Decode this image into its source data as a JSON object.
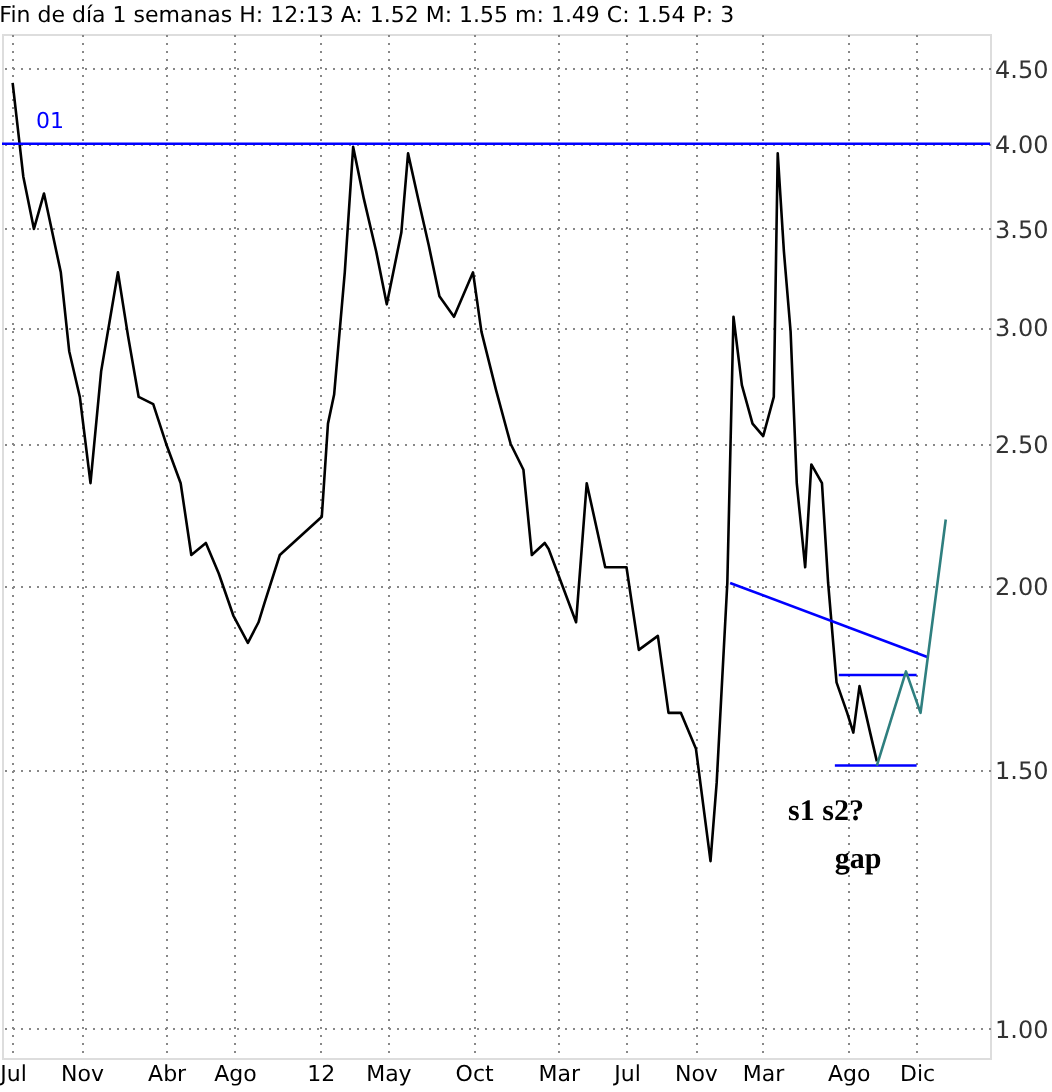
{
  "chart_data": {
    "type": "line",
    "title": "Fin de día 1 semanas H: 12:13 A: 1.52 M: 1.55 m: 1.49 C: 1.54 P: 3",
    "xlim": [
      "2010-06-12",
      "2015-04-11"
    ],
    "xticks": [
      {
        "value": "2010-07-01",
        "label": "Jul"
      },
      {
        "value": "2010-11-01",
        "label": "Nov"
      },
      {
        "value": "2011-04-01",
        "label": "Abr"
      },
      {
        "value": "2011-08-01",
        "label": "Ago"
      },
      {
        "value": "2012-01-01",
        "label": "12"
      },
      {
        "value": "2012-05-01",
        "label": "May"
      },
      {
        "value": "2012-10-01",
        "label": "Oct"
      },
      {
        "value": "2013-03-01",
        "label": "Mar"
      },
      {
        "value": "2013-07-01",
        "label": "Jul"
      },
      {
        "value": "2013-11-01",
        "label": "Nov"
      },
      {
        "value": "2014-03-01",
        "label": "Mar"
      },
      {
        "value": "2014-08-01",
        "label": "Ago"
      },
      {
        "value": "2014-12-01",
        "label": "Dic"
      }
    ],
    "ylim": [
      0.955,
      4.75
    ],
    "log": true,
    "yticks": [
      {
        "value": 1,
        "label": "1.00"
      },
      {
        "value": 1.5,
        "label": "1.50"
      },
      {
        "value": 2,
        "label": "2.00"
      },
      {
        "value": 2.5,
        "label": "2.50"
      },
      {
        "value": 3,
        "label": "3.00"
      },
      {
        "value": 3.5,
        "label": "3.50"
      },
      {
        "value": 4,
        "label": "4.00"
      },
      {
        "value": 4.5,
        "label": "4.50"
      }
    ],
    "grid": true,
    "series": [
      {
        "color": "#000000",
        "x": [
          "2010-07-01",
          "2010-07-20",
          "2010-08-08",
          "2010-08-26",
          "2010-09-25",
          "2010-10-10",
          "2010-10-29",
          "2010-11-17",
          "2010-12-06",
          "2011-01-05",
          "2011-01-23",
          "2011-02-11",
          "2011-03-09",
          "2011-04-01",
          "2011-04-27",
          "2011-05-16",
          "2011-06-11",
          "2011-07-04",
          "2011-07-30",
          "2011-08-25",
          "2011-09-13",
          "2011-09-24",
          "2011-10-21",
          "2012-01-04",
          "2012-01-15",
          "2012-01-26",
          "2012-02-14",
          "2012-02-29",
          "2012-03-19",
          "2012-04-10",
          "2012-04-29",
          "2012-05-25",
          "2012-06-06",
          "2012-06-24",
          "2012-07-13",
          "2012-08-01",
          "2012-08-27",
          "2012-09-30",
          "2012-10-15",
          "2012-11-10",
          "2012-12-06",
          "2012-12-29",
          "2013-01-13",
          "2013-02-05",
          "2013-02-12",
          "2013-04-02",
          "2013-04-21",
          "2013-05-24",
          "2013-07-01",
          "2013-07-23",
          "2013-08-26",
          "2013-09-14",
          "2013-10-06",
          "2013-11-02",
          "2013-11-28",
          "2013-12-09",
          "2013-12-28",
          "2014-01-08",
          "2014-01-23",
          "2014-02-11",
          "2014-03-02",
          "2014-03-21",
          "2014-03-28",
          "2014-04-08",
          "2014-04-20",
          "2014-05-01",
          "2014-05-16",
          "2014-05-27",
          "2014-06-15",
          "2014-06-26",
          "2014-07-11",
          "2014-07-30",
          "2014-08-10",
          "2014-08-21",
          "2014-09-09",
          "2014-09-21"
        ],
        "values": [
          4.4,
          3.8,
          3.5,
          3.7,
          3.27,
          2.89,
          2.69,
          2.35,
          2.8,
          3.27,
          2.96,
          2.69,
          2.66,
          2.5,
          2.35,
          2.1,
          2.14,
          2.04,
          1.91,
          1.83,
          1.89,
          1.95,
          2.1,
          2.23,
          2.58,
          2.7,
          3.27,
          3.98,
          3.67,
          3.38,
          3.11,
          3.48,
          3.94,
          3.67,
          3.41,
          3.15,
          3.05,
          3.27,
          2.98,
          2.72,
          2.5,
          2.4,
          2.1,
          2.14,
          2.12,
          1.89,
          2.35,
          2.06,
          2.06,
          1.81,
          1.85,
          1.64,
          1.64,
          1.55,
          1.3,
          1.47,
          2.01,
          3.05,
          2.74,
          2.58,
          2.53,
          2.69,
          3.94,
          3.38,
          2.98,
          2.35,
          2.06,
          2.42,
          2.35,
          2.01,
          1.72,
          1.64,
          1.59,
          1.71,
          1.59,
          1.52
        ]
      },
      {
        "color": "#0000ff",
        "x": [
          "2014-01-02",
          "2014-12-20"
        ],
        "values": [
          2.01,
          1.79
        ]
      },
      {
        "color": "#0000ff",
        "x": [
          "2014-07-15",
          "2014-12-01"
        ],
        "values": [
          1.74,
          1.74
        ]
      },
      {
        "color": "#0000ff",
        "x": [
          "2014-07-08",
          "2014-12-01"
        ],
        "values": [
          1.51,
          1.51
        ]
      },
      {
        "color": "#2f7f7f",
        "x": [
          "2014-09-21",
          "2014-11-12",
          "2014-12-08",
          "2015-01-22"
        ],
        "values": [
          1.51,
          1.75,
          1.64,
          2.22
        ]
      }
    ],
    "ref_lines": [
      {
        "axis": "y",
        "value": 4.0,
        "color": "#0000ff"
      }
    ],
    "annotations": [
      "01",
      "s1 s2?",
      "gap"
    ]
  }
}
